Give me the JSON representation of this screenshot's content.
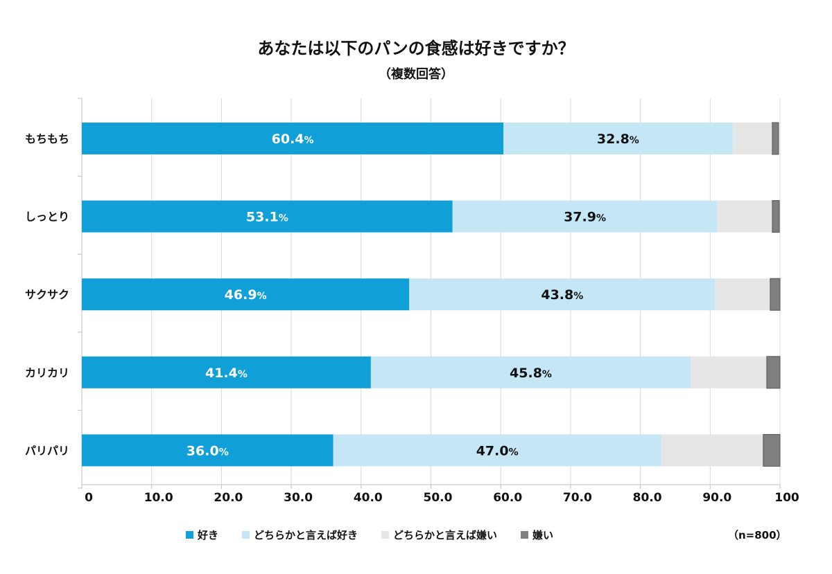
{
  "chart_data": {
    "type": "bar",
    "orientation": "horizontal",
    "stacked": true,
    "title": "あなたは以下のパンの食感は好きですか？",
    "subtitle": "（複数回答）",
    "categories": [
      "もちもち",
      "しっとり",
      "サクサク",
      "カリカリ",
      "パリパリ"
    ],
    "series": [
      {
        "name": "好き",
        "color": "#109fd6",
        "label_color": "#ffffff",
        "values": [
          60.4,
          53.1,
          46.9,
          41.4,
          36.0
        ],
        "labels": [
          "60.4",
          "53.1",
          "46.9",
          "41.4",
          "36.0"
        ]
      },
      {
        "name": "どちらかと言えば好き",
        "color": "#c5e6f4",
        "label_color": "#111111",
        "values": [
          32.8,
          37.9,
          43.8,
          45.8,
          47.0
        ],
        "labels": [
          "32.8",
          "37.9",
          "43.8",
          "45.8",
          "47.0"
        ]
      },
      {
        "name": "どちらかと言えば嫌い",
        "color": "#e6e6e6",
        "values": [
          5.7,
          7.9,
          7.9,
          10.9,
          14.6
        ]
      },
      {
        "name": "嫌い",
        "color": "#7f7f7f",
        "values": [
          0.9,
          1.0,
          1.4,
          1.9,
          2.4
        ]
      }
    ],
    "value_suffix": "%",
    "xlim": [
      0,
      100
    ],
    "xticks": [
      "0",
      "10.0",
      "20.0",
      "30.0",
      "40.0",
      "50.0",
      "60.0",
      "70.0",
      "80.0",
      "90.0",
      "100"
    ],
    "grid": true,
    "legend_position": "bottom",
    "note": "（n=800）"
  }
}
